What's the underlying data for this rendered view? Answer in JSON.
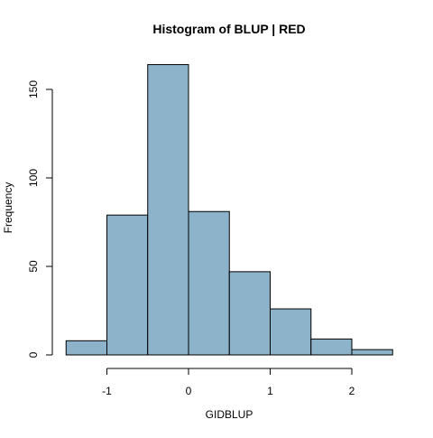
{
  "chart_data": {
    "type": "bar",
    "subtype": "histogram",
    "title": "Histogram of BLUP | RED",
    "xlabel": "GIDBLUP",
    "ylabel": "Frequency",
    "bin_edges": [
      -1.5,
      -1.0,
      -0.5,
      0.0,
      0.5,
      1.0,
      1.5,
      2.0,
      2.5
    ],
    "bins": [
      {
        "x0": -1.5,
        "x1": -1.0,
        "count": 8
      },
      {
        "x0": -1.0,
        "x1": -0.5,
        "count": 79
      },
      {
        "x0": -0.5,
        "x1": 0.0,
        "count": 164
      },
      {
        "x0": 0.0,
        "x1": 0.5,
        "count": 81
      },
      {
        "x0": 0.5,
        "x1": 1.0,
        "count": 47
      },
      {
        "x0": 1.0,
        "x1": 1.5,
        "count": 26
      },
      {
        "x0": 1.5,
        "x1": 2.0,
        "count": 9
      },
      {
        "x0": 2.0,
        "x1": 2.5,
        "count": 3
      }
    ],
    "xticks": [
      -1,
      0,
      1,
      2
    ],
    "xtick_labels": [
      "-1",
      "0",
      "1",
      "2"
    ],
    "yticks": [
      0,
      50,
      100,
      150
    ],
    "ytick_labels": [
      "0",
      "50",
      "100",
      "150"
    ],
    "xlim": [
      -1.5,
      2.5
    ],
    "ylim": [
      0,
      170
    ],
    "grid": false,
    "legend": "none",
    "colors": {
      "bar_fill": "#8DB3CB",
      "bar_stroke": "#000000",
      "axis": "#000000",
      "background": "#FFFFFF"
    }
  }
}
